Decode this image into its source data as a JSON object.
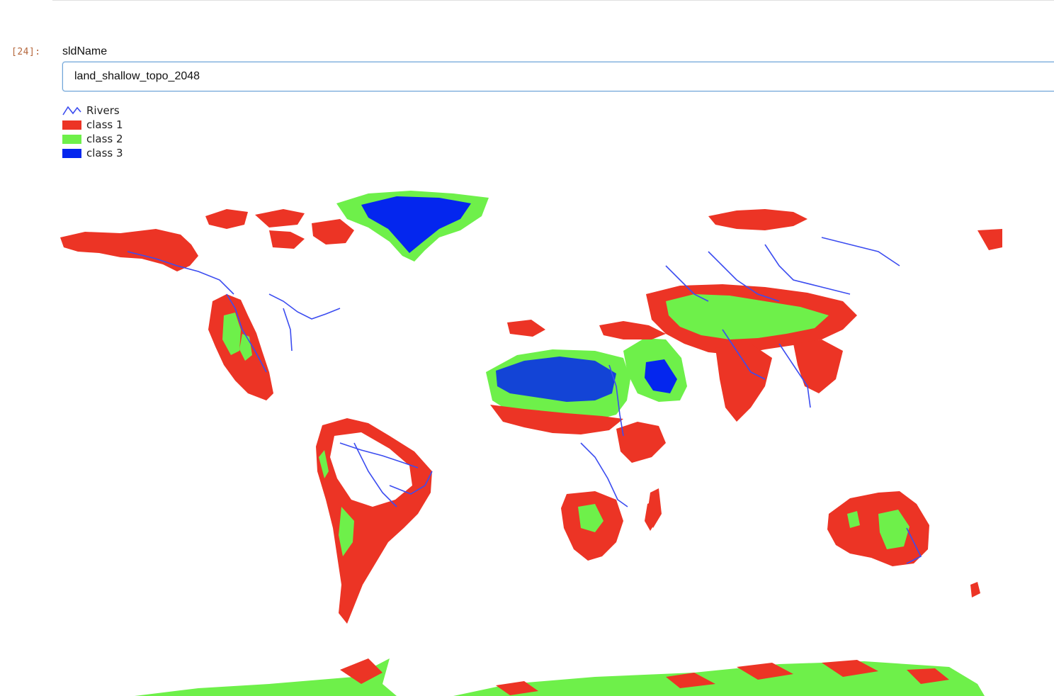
{
  "cell": {
    "prompt": "[24]:"
  },
  "field": {
    "label": "sldName",
    "value": "land_shallow_topo_2048"
  },
  "legend": {
    "items": [
      {
        "label": "Rivers",
        "kind": "line",
        "color": "#3b4cf0"
      },
      {
        "label": "class 1",
        "kind": "fill",
        "color": "#ec3425"
      },
      {
        "label": "class 2",
        "kind": "fill",
        "color": "#6ef04a"
      },
      {
        "label": "class 3",
        "kind": "fill",
        "color": "#0426ee"
      }
    ]
  },
  "colors": {
    "class1": "#ec3425",
    "class2": "#6ef04a",
    "class3": "#0426ee",
    "rivers": "#3b4cf0"
  }
}
